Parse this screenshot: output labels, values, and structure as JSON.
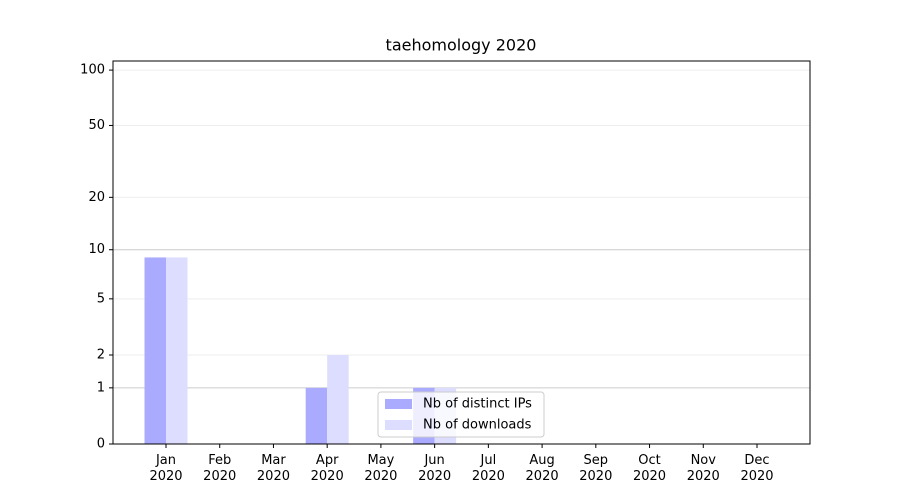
{
  "chart_data": {
    "type": "bar",
    "title": "taehomology 2020",
    "categories": [
      "Jan\n2020",
      "Feb\n2020",
      "Mar\n2020",
      "Apr\n2020",
      "May\n2020",
      "Jun\n2020",
      "Jul\n2020",
      "Aug\n2020",
      "Sep\n2020",
      "Oct\n2020",
      "Nov\n2020",
      "Dec\n2020"
    ],
    "series": [
      {
        "name": "Nb of distinct IPs",
        "color": "#aaaaff",
        "values": [
          9,
          0,
          0,
          1,
          0,
          1,
          0,
          0,
          0,
          0,
          0,
          0
        ]
      },
      {
        "name": "Nb of downloads",
        "color": "#ddddff",
        "values": [
          9,
          0,
          0,
          2,
          0,
          1,
          0,
          0,
          0,
          0,
          0,
          0
        ]
      }
    ],
    "yscale": "log1p",
    "ylim": [
      0,
      112
    ],
    "yticks": [
      0,
      1,
      2,
      5,
      10,
      20,
      50,
      100
    ],
    "grid": true,
    "legend": "lower center"
  }
}
